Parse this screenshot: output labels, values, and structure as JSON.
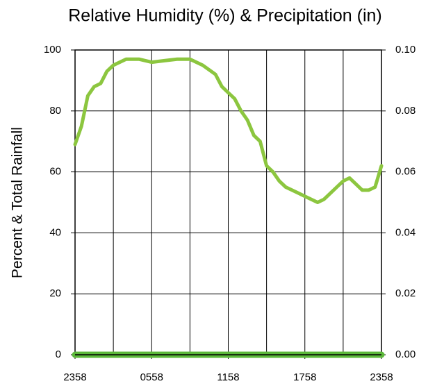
{
  "chart_data": {
    "type": "line",
    "title": "Relative Humidity (%) & Precipitation (in)",
    "ylabel": "Percent & Total Rainfall",
    "xlim": [
      0,
      24
    ],
    "xticks": [
      {
        "value": 0,
        "label": "2358"
      },
      {
        "value": 6,
        "label": "0558"
      },
      {
        "value": 12,
        "label": "1158"
      },
      {
        "value": 18,
        "label": "1758"
      },
      {
        "value": 24,
        "label": "2358"
      }
    ],
    "xminor_ticks": [
      3,
      9,
      15,
      21
    ],
    "ylim": [
      0,
      100
    ],
    "yticks": [
      0,
      20,
      40,
      60,
      80,
      100
    ],
    "y2lim": [
      0,
      0.1
    ],
    "y2ticks": [
      {
        "value": 0,
        "label": "0.00"
      },
      0.02,
      0.04,
      0.06,
      0.08,
      {
        "value": 0.1,
        "label": "0.10"
      }
    ],
    "grid": true,
    "series": [
      {
        "name": "Relative Humidity",
        "color": "#8cc63f",
        "axis": "y",
        "x": [
          0,
          0.5,
          1,
          1.5,
          2,
          2.5,
          3,
          3.5,
          4,
          5,
          6,
          7,
          8,
          9,
          10,
          11,
          11.5,
          12,
          12.5,
          13,
          13.5,
          14,
          14.5,
          15,
          15.5,
          16,
          16.5,
          17,
          17.5,
          18,
          18.5,
          19,
          19.5,
          20,
          20.5,
          21,
          21.5,
          22,
          22.5,
          23,
          23.5,
          24
        ],
        "values": [
          69,
          75,
          85,
          88,
          89,
          93,
          95,
          96,
          97,
          97,
          96,
          96.5,
          97,
          97,
          95,
          92,
          88,
          86,
          84,
          80,
          77,
          72,
          70,
          62,
          60,
          57,
          55,
          54,
          53,
          52,
          51,
          50,
          51,
          53,
          55,
          57,
          58,
          56,
          54,
          54,
          55,
          62
        ]
      },
      {
        "name": "Precipitation",
        "color": "#5cb83a",
        "axis": "y2",
        "x": [
          0,
          24
        ],
        "values": [
          0,
          0
        ]
      }
    ]
  }
}
